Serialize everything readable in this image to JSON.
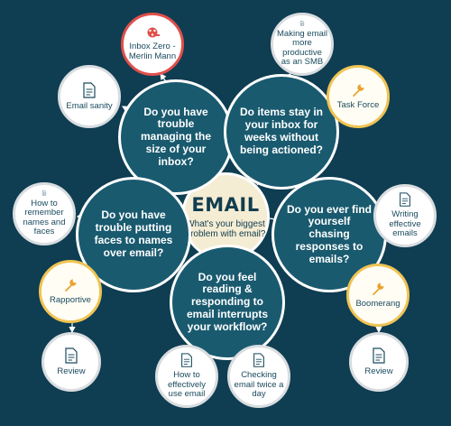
{
  "center": {
    "title": "EMAIL",
    "subtitle": "What's your biggest problem with email?"
  },
  "questions": {
    "inbox_size": "Do you have trouble managing the size of your inbox?",
    "items_stay": "Do items stay in your inbox for weeks without being actioned?",
    "faces_names": "Do you have trouble putting faces to names over email?",
    "chasing": "Do you ever find yourself chasing responses to emails?",
    "workflow": "Do you feel reading & responding to email interrupts your workflow?"
  },
  "resources": {
    "inbox_zero": "Inbox Zero - Merlin Mann",
    "email_sanity": "Email sanity",
    "productive_smb": "Making email more productive as an SMB",
    "task_force": "Task Force",
    "remember_names": "How to remember names and faces",
    "rapportive": "Rapportive",
    "review_left": "Review",
    "writing_effective": "Writing effective emails",
    "boomerang": "Boomerang",
    "review_right": "Review",
    "effectively_use": "How to effectively use email",
    "checking_twice": "Checking email twice a day"
  },
  "colors": {
    "background": "#0f3d52",
    "question_fill": "#195a6f",
    "center_fill": "#f4ecd3",
    "tool_border": "#f0c453",
    "video_accent": "#e0504b",
    "connector": "#ffffff"
  },
  "icons": {
    "article": "document-icon",
    "tool": "wrench-icon",
    "video": "film-reel-icon"
  }
}
